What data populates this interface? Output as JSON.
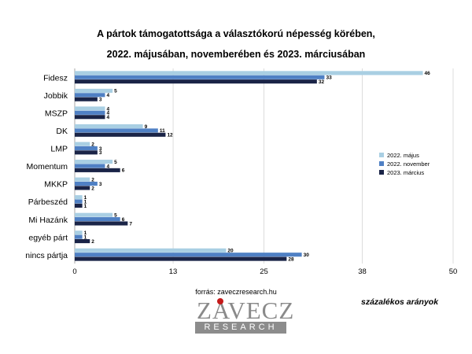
{
  "chart_data": {
    "type": "bar",
    "orientation": "horizontal",
    "title": "A pártok támogatottsága a választókorú népesség körében,",
    "subtitle": "2022. májusában, novemberében és 2023. márciusában",
    "categories": [
      "Fidesz",
      "Jobbik",
      "MSZP",
      "DK",
      "LMP",
      "Momentum",
      "MKKP",
      "Párbeszéd",
      "Mi Hazánk",
      "egyéb párt",
      "nincs pártja"
    ],
    "series": [
      {
        "name": "2022. május",
        "color": "#a9cfe3",
        "values": [
          46,
          5,
          4,
          9,
          2,
          5,
          2,
          1,
          5,
          1,
          20
        ]
      },
      {
        "name": "2022. november",
        "color": "#4f80c4",
        "values": [
          33,
          4,
          4,
          11,
          3,
          4,
          3,
          1,
          6,
          1,
          30
        ]
      },
      {
        "name": "2023. március",
        "color": "#1a2447",
        "values": [
          32,
          3,
          4,
          12,
          3,
          6,
          2,
          1,
          7,
          2,
          28
        ]
      }
    ],
    "xlim": [
      0,
      50
    ],
    "xticks": [
      0,
      13,
      25,
      38,
      50
    ],
    "grid": true,
    "legend_position": "right"
  },
  "source": "forrás: zaveczresearch.hu",
  "unit_label": "százalékos arányok",
  "logo": {
    "name": "ZAVECZ",
    "tagline": "RESEARCH"
  }
}
